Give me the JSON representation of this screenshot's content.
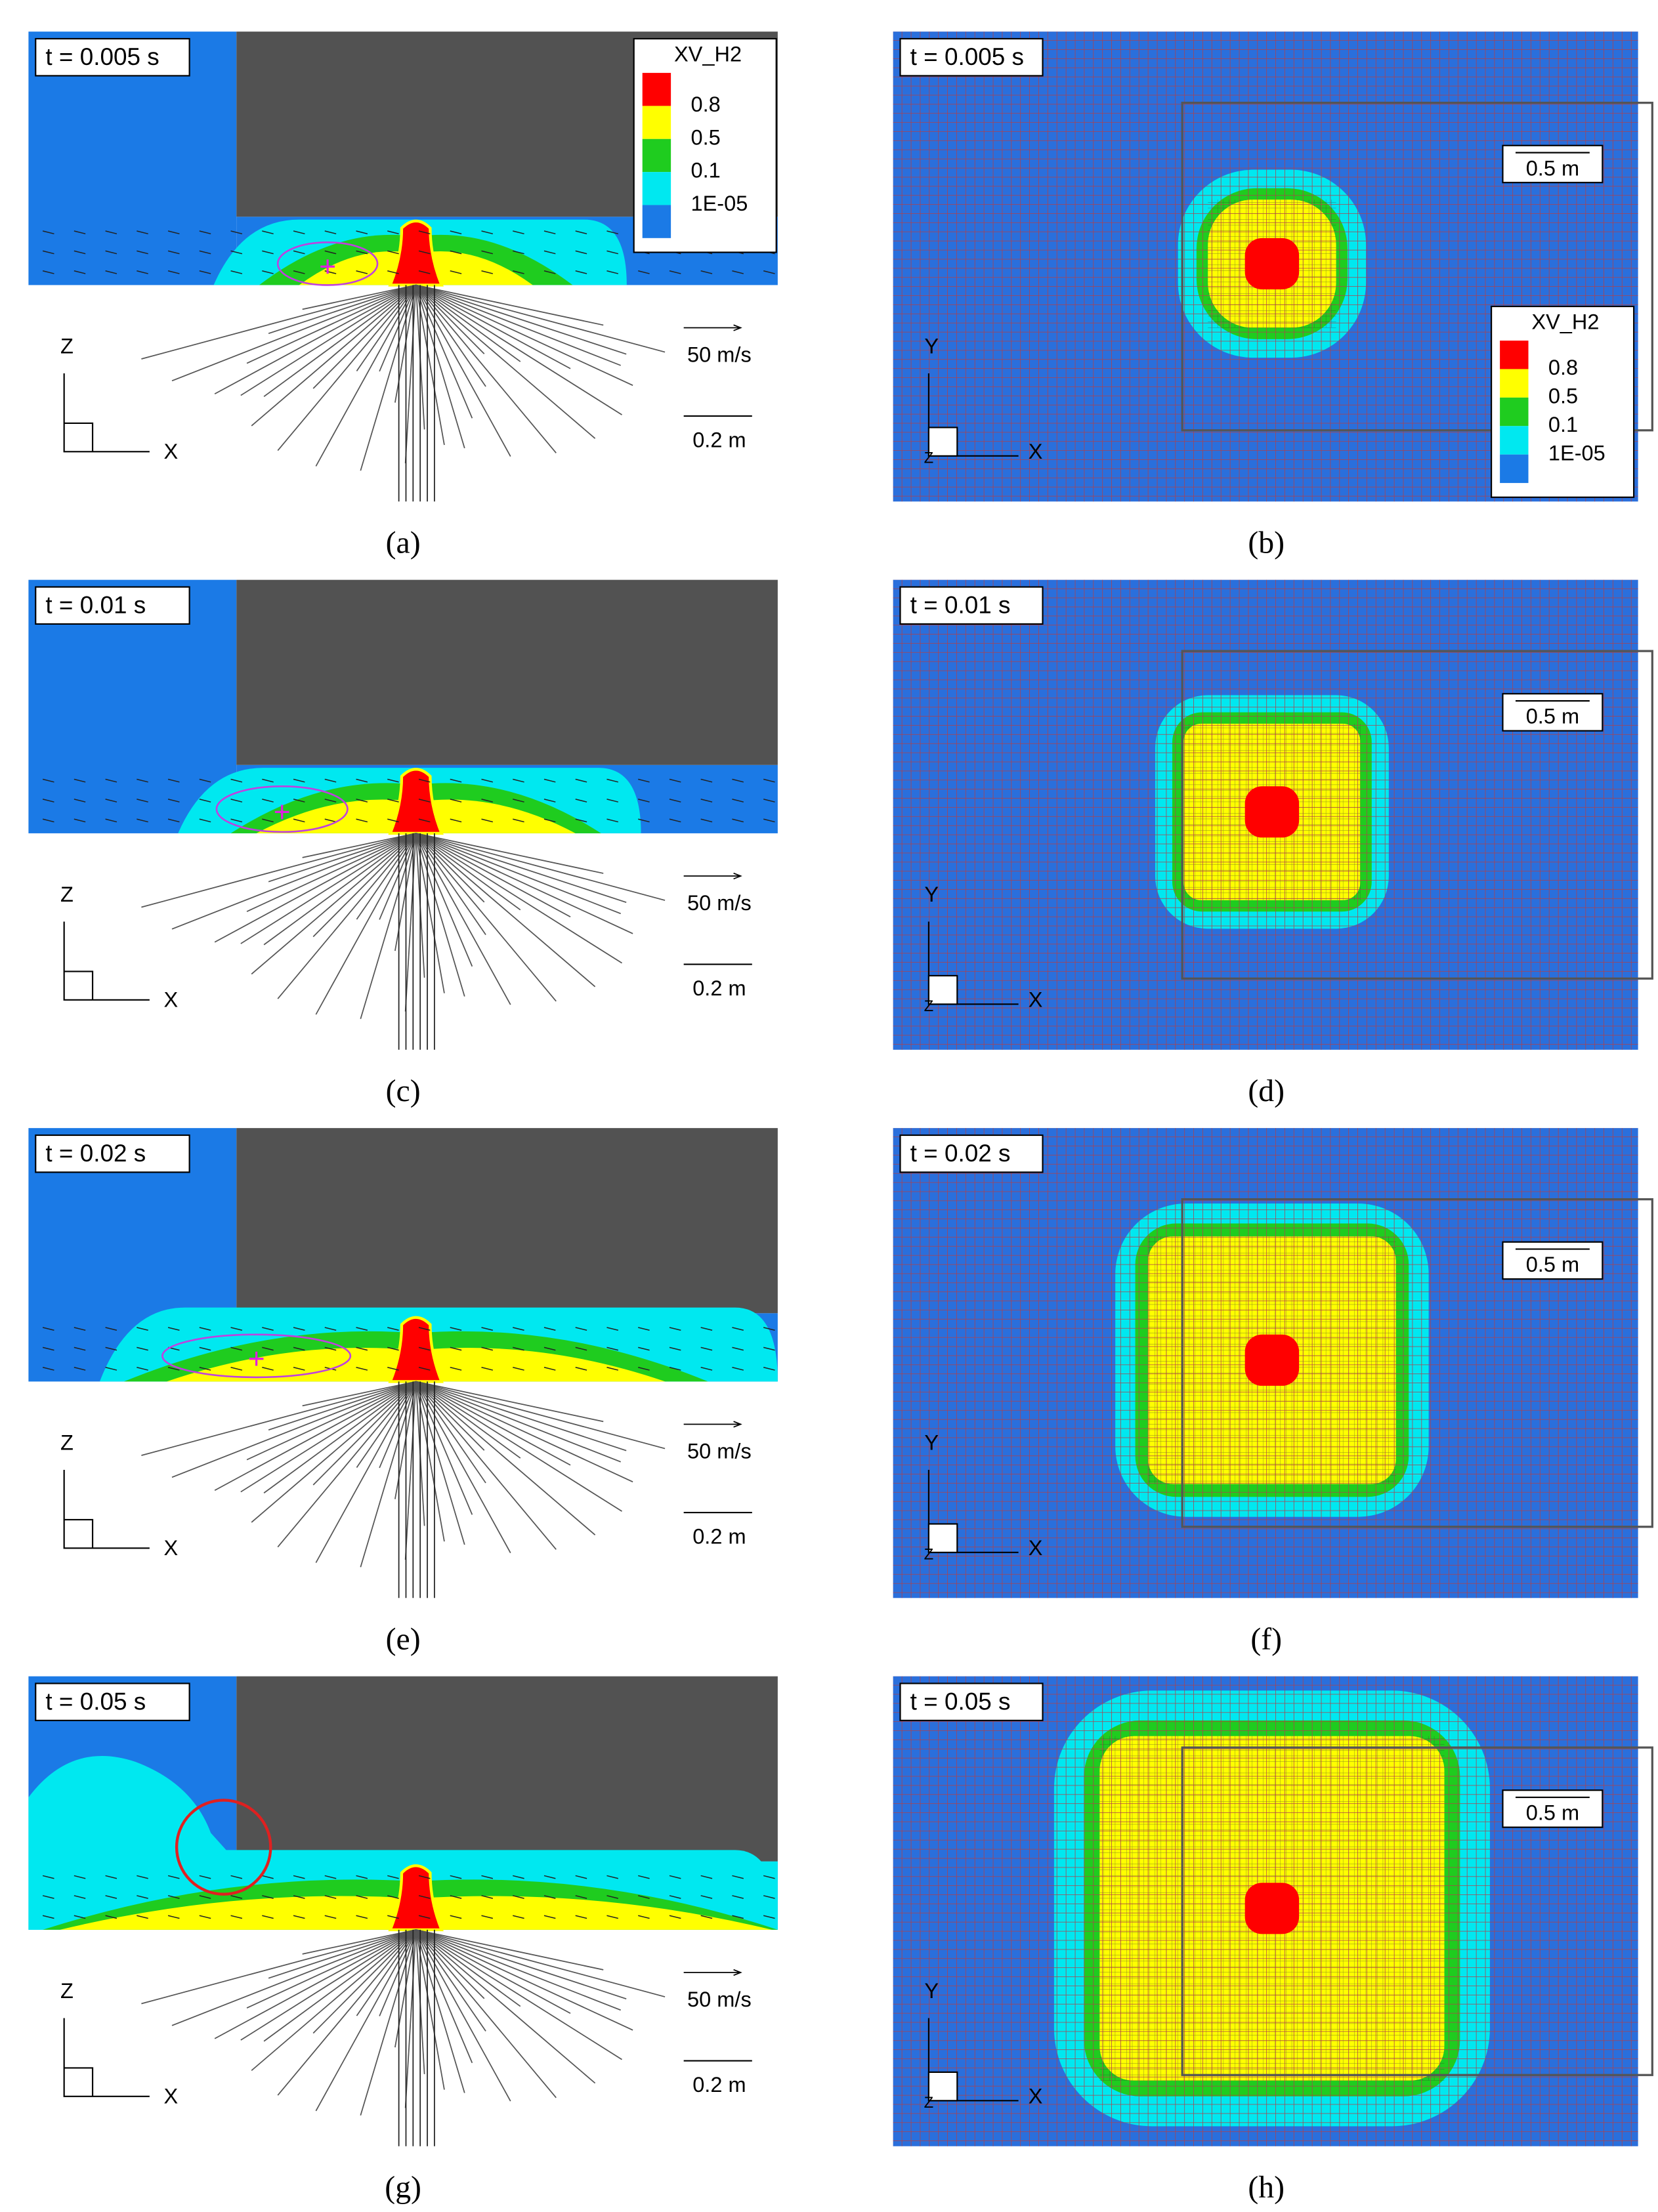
{
  "legend": {
    "title": "XV_H2",
    "entries": [
      "0.8",
      "0.5",
      "0.1",
      "1E-05"
    ]
  },
  "rows": [
    {
      "time": "t = 0.005 s",
      "left": {
        "caption": "(a)",
        "velocity_scale": "50 m/s",
        "length_scale": "0.2 m",
        "axis_vertical": "Z",
        "axis_horizontal": "X"
      },
      "right": {
        "caption": "(b)",
        "length_scale": "0.5 m",
        "axis_vertical": "Y",
        "axis_horizontal": "X",
        "axis_normal": "Z"
      }
    },
    {
      "time": "t = 0.01 s",
      "left": {
        "caption": "(c)",
        "velocity_scale": "50 m/s",
        "length_scale": "0.2 m",
        "axis_vertical": "Z",
        "axis_horizontal": "X"
      },
      "right": {
        "caption": "(d)",
        "length_scale": "0.5 m",
        "axis_vertical": "Y",
        "axis_horizontal": "X",
        "axis_normal": "Z"
      }
    },
    {
      "time": "t = 0.02 s",
      "left": {
        "caption": "(e)",
        "velocity_scale": "50 m/s",
        "length_scale": "0.2 m",
        "axis_vertical": "Z",
        "axis_horizontal": "X"
      },
      "right": {
        "caption": "(f)",
        "length_scale": "0.5 m",
        "axis_vertical": "Y",
        "axis_horizontal": "X",
        "axis_normal": "Z"
      }
    },
    {
      "time": "t = 0.05 s",
      "left": {
        "caption": "(g)",
        "velocity_scale": "50 m/s",
        "length_scale": "0.2 m",
        "axis_vertical": "Z",
        "axis_horizontal": "X"
      },
      "right": {
        "caption": "(h)",
        "length_scale": "0.5 m",
        "axis_vertical": "Y",
        "axis_horizontal": "X",
        "axis_normal": "Z"
      }
    }
  ]
}
